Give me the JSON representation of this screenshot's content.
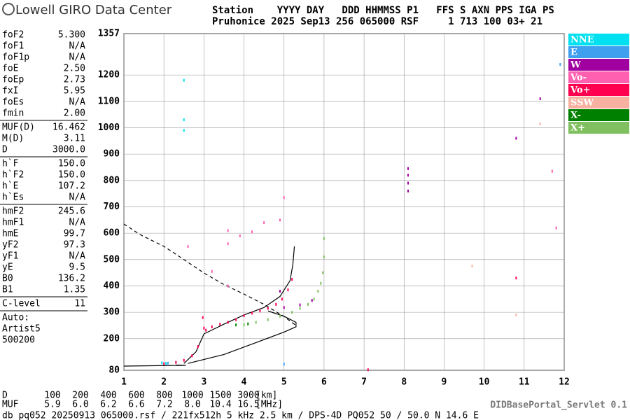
{
  "header": {
    "logo": "Lowell GIRO Data Center",
    "columns": "Station    YYYY DAY   DDD HHMMSS P1   FFS S AXN PPS IGA PS",
    "values": "Pruhonice 2025 Sep13 256 065000 RSF     1 713 100 03+ 21"
  },
  "parameters": [
    [
      [
        "foF2",
        "5.300"
      ],
      [
        "foF1",
        "N/A"
      ],
      [
        "foF1p",
        "N/A"
      ],
      [
        "foE",
        "2.50"
      ],
      [
        "foEp",
        "2.73"
      ],
      [
        "fxI",
        "5.95"
      ],
      [
        "foEs",
        "N/A"
      ],
      [
        "fmin",
        "2.00"
      ]
    ],
    [
      [
        "MUF(D)",
        "16.462"
      ],
      [
        "M(D)",
        "3.11"
      ],
      [
        "D",
        "3000.0"
      ]
    ],
    [
      [
        "h`F",
        "150.0"
      ],
      [
        "h`F2",
        "150.0"
      ],
      [
        "h`E",
        "107.2"
      ],
      [
        "h`Es",
        "N/A"
      ]
    ],
    [
      [
        "hmF2",
        "245.6"
      ],
      [
        "hmF1",
        "N/A"
      ],
      [
        "hmE",
        "99.7"
      ],
      [
        "yF2",
        "97.3"
      ],
      [
        "yF1",
        "N/A"
      ],
      [
        "yE",
        "9.5"
      ],
      [
        "B0",
        "136.2"
      ],
      [
        "B1",
        "1.35"
      ]
    ],
    [
      [
        "C-level",
        "11"
      ]
    ]
  ],
  "autoscaling": [
    "Auto:",
    "Artist5",
    "500200"
  ],
  "chart_data": {
    "type": "scatter",
    "xlim": [
      1,
      12
    ],
    "xticks": [
      1,
      2,
      3,
      4,
      5,
      6,
      7,
      8,
      9,
      10,
      11,
      12
    ],
    "ylim": [
      80,
      1357
    ],
    "yticks": [
      80,
      200,
      300,
      400,
      500,
      600,
      700,
      800,
      900,
      1000,
      1100,
      1200,
      1357
    ],
    "grid": true,
    "series": [
      {
        "name": "NNE",
        "color": "#00e0f0",
        "x": [
          2.5,
          2.5,
          2.5,
          1.95,
          2.05
        ],
        "values": [
          1180,
          1030,
          990,
          108,
          106
        ]
      },
      {
        "name": "E",
        "color": "#40a0f0",
        "x": [
          2.1,
          2.3,
          5.0,
          11.9
        ],
        "values": [
          107,
          110,
          103,
          1240
        ]
      },
      {
        "name": "W",
        "color": "#a000a0",
        "x": [
          8.1,
          8.1,
          8.1,
          8.1,
          5.0,
          5.4,
          5.7,
          4.9,
          10.8,
          11.4
        ],
        "values": [
          760,
          790,
          820,
          845,
          318,
          328,
          345,
          380,
          960,
          1110
        ]
      },
      {
        "name": "Vo-",
        "color": "#ff60b0",
        "x": [
          3.6,
          3.6,
          3.6,
          3.9,
          4.2,
          4.5,
          4.9,
          3.2,
          2.6,
          11.8,
          11.7,
          5.0
        ],
        "values": [
          610,
          560,
          400,
          590,
          605,
          640,
          650,
          455,
          550,
          620,
          835,
          735
        ]
      },
      {
        "name": "Vo+",
        "color": "#ff0050",
        "x": [
          2.0,
          2.3,
          2.5,
          2.7,
          2.85,
          2.97,
          3.0,
          3.05,
          3.2,
          3.4,
          3.6,
          3.8,
          4.0,
          4.2,
          4.4,
          4.6,
          4.8,
          4.95,
          5.1,
          5.2,
          10.8,
          7.1
        ],
        "values": [
          105,
          110,
          118,
          135,
          170,
          280,
          240,
          232,
          245,
          255,
          262,
          272,
          287,
          297,
          305,
          315,
          330,
          350,
          385,
          425,
          430,
          82
        ]
      },
      {
        "name": "SSW",
        "color": "#f8b0a0",
        "x": [
          10.8,
          11.4,
          9.7
        ],
        "values": [
          290,
          1015,
          475
        ]
      },
      {
        "name": "X-",
        "color": "#008000",
        "x": [
          3.8,
          4.1
        ],
        "values": [
          252,
          256
        ]
      },
      {
        "name": "X+",
        "color": "#80c060",
        "x": [
          4.0,
          4.3,
          4.6,
          4.9,
          5.2,
          5.4,
          5.6,
          5.75,
          5.85,
          5.92,
          5.97,
          6.0,
          6.0
        ],
        "values": [
          252,
          262,
          272,
          285,
          300,
          315,
          330,
          350,
          380,
          410,
          450,
          510,
          580
        ]
      }
    ],
    "lines": [
      {
        "color": "#000000",
        "dashed": false,
        "x": [
          1.0,
          2.55,
          2.3
        ],
        "values": [
          96,
          99,
          100
        ]
      },
      {
        "color": "#000000",
        "dashed": false,
        "x": [
          2.5,
          2.8,
          3.0,
          3.5,
          4.0,
          4.5,
          4.9,
          5.15,
          5.22,
          5.26
        ],
        "values": [
          106,
          150,
          218,
          255,
          290,
          318,
          360,
          420,
          480,
          550
        ]
      },
      {
        "color": "#000000",
        "dashed": false,
        "x": [
          2.6,
          3.5,
          4.3,
          5.0,
          5.3,
          5.3,
          5.0,
          4.6
        ],
        "values": [
          106,
          140,
          185,
          225,
          245,
          262,
          285,
          305
        ]
      },
      {
        "color": "#000000",
        "dashed": true,
        "x": [
          1,
          1.4,
          2,
          2.5,
          3,
          3.5,
          4,
          4.5,
          5,
          5.3
        ],
        "values": [
          635,
          595,
          550,
          500,
          449,
          405,
          369,
          330,
          284,
          250
        ]
      }
    ]
  },
  "distance": {
    "label": "D",
    "values": [
      "100",
      "200",
      "400",
      "600",
      "800",
      "1000",
      "1500",
      "3000"
    ],
    "unit": "[km]"
  },
  "muf": {
    "label": "MUF",
    "values": [
      "5.9",
      "6.0",
      "6.2",
      "6.6",
      "7.2",
      "8.0",
      "10.4",
      "16.5"
    ],
    "unit": "[MHz]"
  },
  "footer": {
    "file": "db pq052 20250913 065000.rsf / 221fx512h 5 kHz 2.5 km / DPS-4D PQ052 50 / 50.0 N 14.6 E",
    "servlet": "DIDBasePortal_Servlet 0.1"
  }
}
